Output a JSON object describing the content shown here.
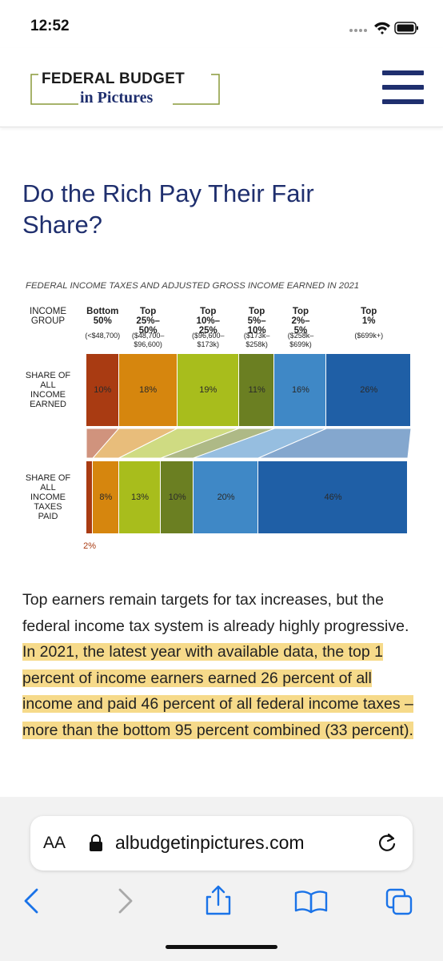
{
  "status_bar": {
    "time": "12:52"
  },
  "header": {
    "logo_line1": "FEDERAL BUDGET",
    "logo_line2": "in Pictures"
  },
  "article": {
    "title": "Do the Rich Pay Their Fair Share?",
    "paragraph": {
      "text": "Top earners remain targets for tax increases, but the federal income tax system is already highly progressive.",
      "highlight": "In 2021, the latest year with available data, the top 1 percent of income earners earned 26 percent of all income and paid 46 percent of all federal income taxes – more than the bottom 95 percent combined (33 percent)."
    }
  },
  "chart_data": {
    "type": "bar",
    "stacked": true,
    "subtitle": "FEDERAL INCOME TAXES AND ADJUSTED GROSS INCOME EARNED IN 2021",
    "category_axis_label": "INCOME GROUP",
    "categories": [
      "Bottom 50%",
      "Top 25%–50%",
      "Top 10%–25%",
      "Top 5%–10%",
      "Top 2%–5%",
      "Top 1%"
    ],
    "category_ranges": [
      "(<$48,700)",
      "($48,700–$96,600)",
      "($96,600–$173k)",
      "($173k–$258k)",
      "($258k–$699k)",
      "($699k+)"
    ],
    "colors": [
      "#a93b12",
      "#d6860e",
      "#a8bd1c",
      "#6b7f22",
      "#3f88c6",
      "#1f5fa6"
    ],
    "xlim": [
      0,
      100
    ],
    "series": [
      {
        "name": "SHARE OF ALL INCOME EARNED",
        "values": [
          10,
          18,
          19,
          11,
          16,
          26
        ],
        "value_labels": [
          "10%",
          "18%",
          "19%",
          "11%",
          "16%",
          "26%"
        ]
      },
      {
        "name": "SHARE OF ALL INCOME TAXES PAID",
        "values": [
          2,
          8,
          13,
          10,
          20,
          46
        ],
        "value_labels": [
          "2%",
          "8%",
          "13%",
          "10%",
          "20%",
          "46%"
        ]
      }
    ]
  },
  "browser": {
    "text_size": "AA",
    "url": "albudgetinpictures.com"
  }
}
